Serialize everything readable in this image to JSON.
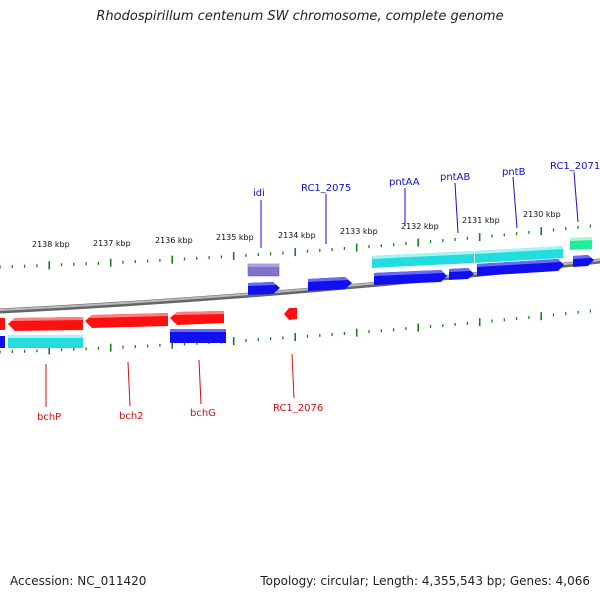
{
  "title": "Rhodospirillum centenum SW chromosome, complete genome",
  "footer": {
    "accession": "Accession: NC_011420",
    "summary": "Topology: circular; Length: 4,355,543 bp; Genes: 4,066"
  },
  "colors": {
    "backbone": "#8c8c8c",
    "tick": "#1a7f1a",
    "forward_label": "#1010d0",
    "reverse_label": "#cc1010",
    "red_gene": "#ff1010",
    "blue_gene": "#1010ee",
    "cyan_gene": "#22dddd",
    "purple_gene": "#7f73cc",
    "green_gene": "#22ee99"
  },
  "scale": {
    "ticks": [
      "2138 kbp",
      "2137 kbp",
      "2136 kbp",
      "2135 kbp",
      "2134 kbp",
      "2133 kbp",
      "2132 kbp",
      "2131 kbp",
      "2130 kbp"
    ]
  },
  "labels_top": [
    "idi",
    "RC1_2075",
    "pntAA",
    "pntAB",
    "pntB",
    "RC1_2071"
  ],
  "labels_bottom": [
    "bchP",
    "bch2",
    "bchG",
    "RC1_2076"
  ]
}
